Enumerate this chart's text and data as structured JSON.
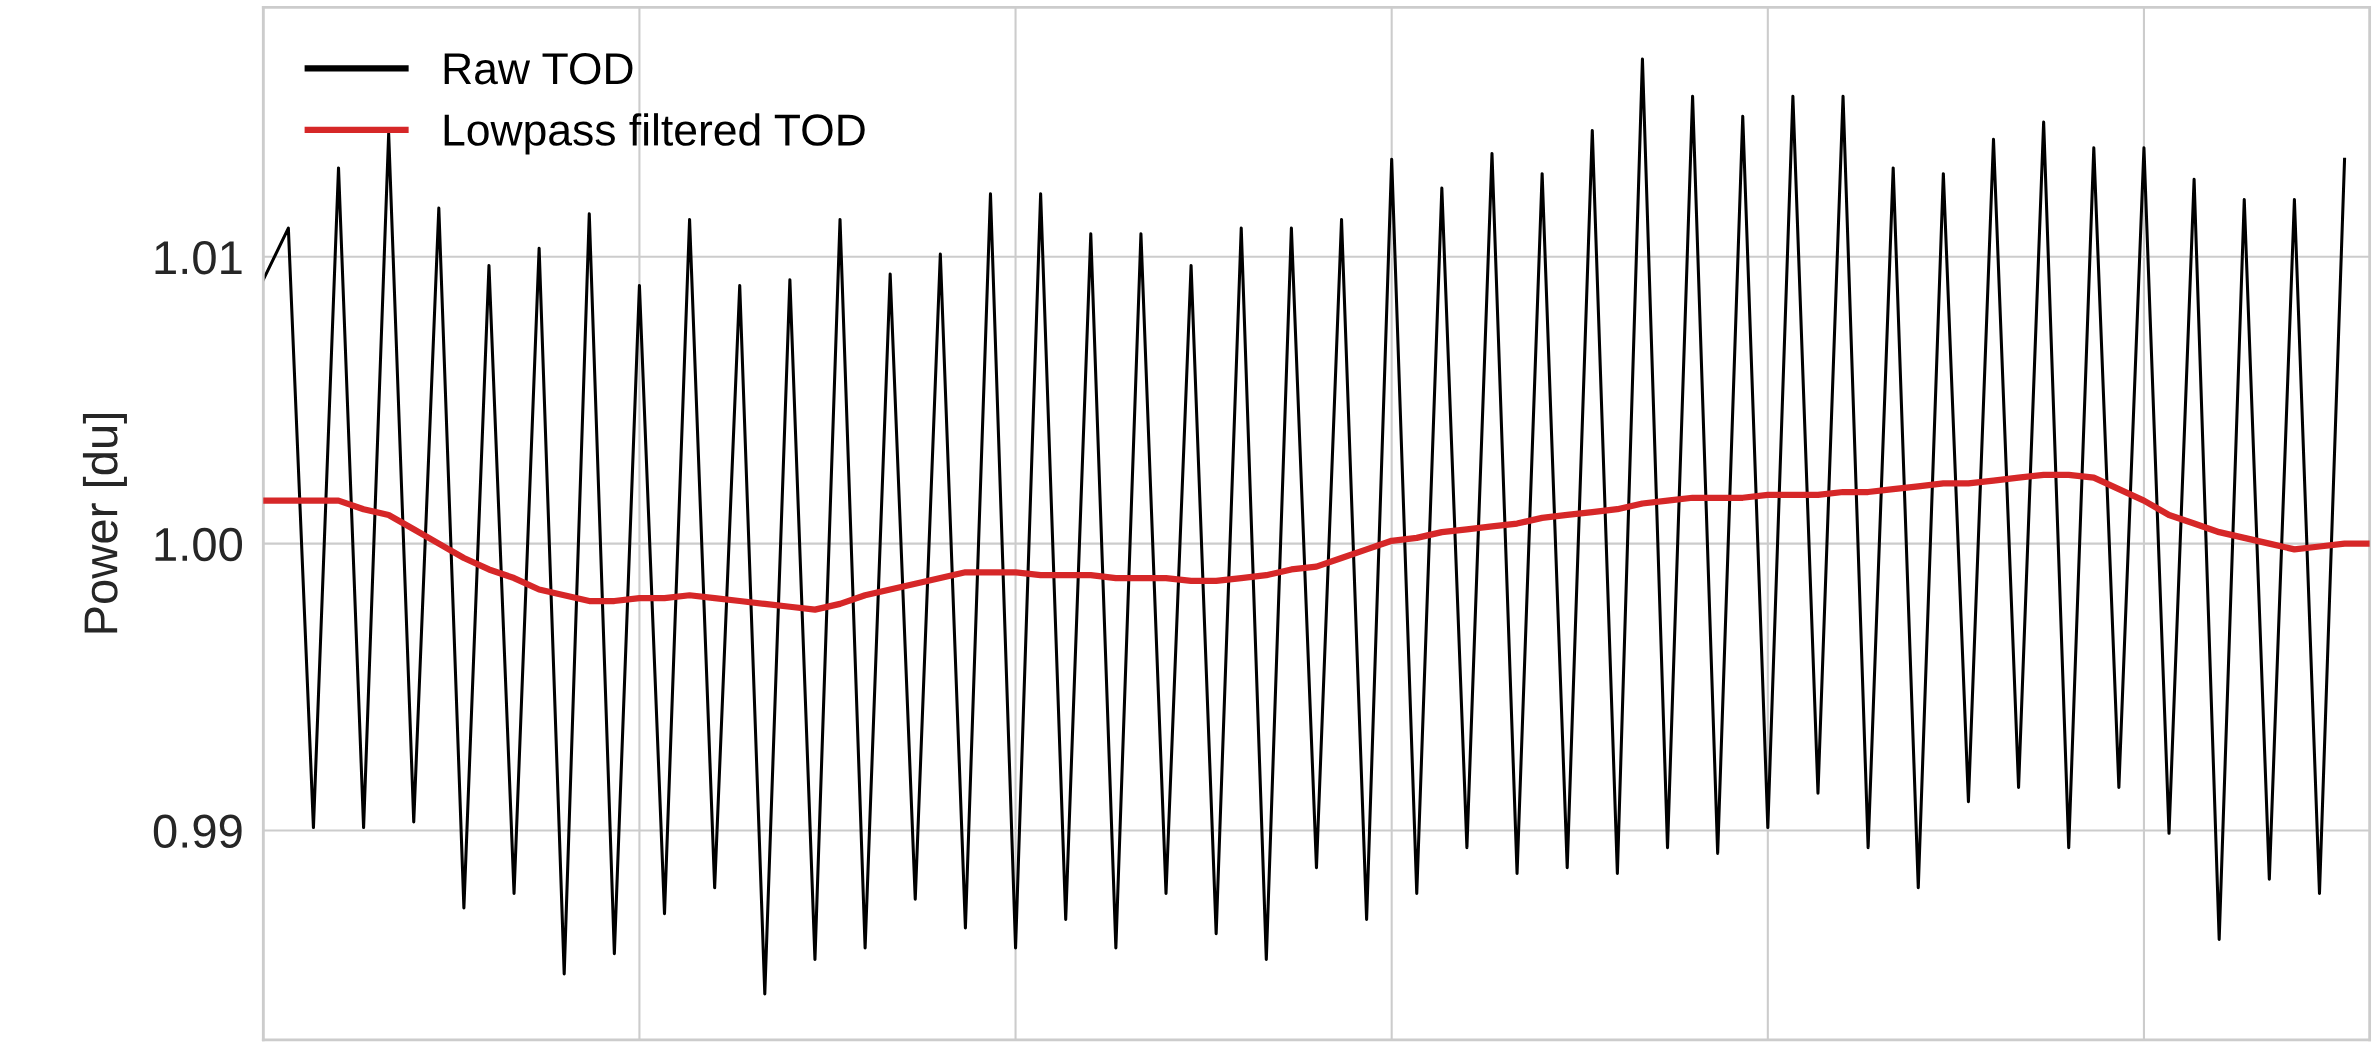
{
  "chart_data": {
    "type": "line",
    "ylabel": "Power [du]",
    "categories": [
      null,
      null,
      null,
      null,
      null,
      null,
      null,
      null,
      null,
      null,
      null,
      null,
      null,
      null,
      null,
      null,
      null,
      null,
      null,
      null,
      null,
      null,
      null,
      null,
      null,
      null,
      null,
      null,
      null,
      null,
      null,
      null,
      null,
      null,
      null,
      null,
      null,
      null,
      null,
      null,
      null,
      null,
      null,
      null,
      null,
      null,
      null,
      null,
      null,
      null,
      null,
      null,
      null,
      null,
      null,
      null,
      null,
      null,
      null,
      null,
      null,
      null,
      null,
      null,
      null,
      null,
      null,
      null,
      null,
      null,
      null,
      null,
      null,
      null,
      null,
      null,
      null,
      null,
      null,
      null,
      null,
      null,
      null,
      null,
      null
    ],
    "ylim": [
      0.9827,
      1.0187
    ],
    "yticks": [
      0.99,
      {
        "value": 1.0,
        "label": "1.00"
      },
      1.01
    ],
    "grid": true,
    "legend": "top left",
    "line_style": "solid",
    "marker": "none",
    "series": [
      {
        "name": "Raw TOD",
        "color": "#000000",
        "values": [
          1.0092,
          1.011,
          0.9901,
          1.0131,
          0.9901,
          1.0143,
          0.9903,
          1.0117,
          0.9873,
          1.0097,
          0.9878,
          1.0103,
          0.985,
          1.0115,
          0.9857,
          1.009,
          0.9871,
          1.0113,
          0.988,
          1.009,
          0.9843,
          1.0092,
          0.9855,
          1.0113,
          0.9859,
          1.0094,
          0.9876,
          1.0101,
          0.9866,
          1.0122,
          0.9859,
          1.0122,
          0.9869,
          1.0108,
          0.9859,
          1.0108,
          0.9878,
          1.0097,
          0.9864,
          1.011,
          0.9855,
          1.011,
          0.9887,
          1.0113,
          0.9869,
          1.0134,
          0.9878,
          1.0124,
          0.9894,
          1.0136,
          0.9885,
          1.0129,
          0.9887,
          1.0144,
          0.9885,
          1.0169,
          0.9894,
          1.0156,
          0.9892,
          1.0149,
          0.9901,
          1.0156,
          0.9913,
          1.0156,
          0.9894,
          1.0131,
          0.988,
          1.0129,
          0.991,
          1.0141,
          0.9915,
          1.0147,
          0.9894,
          1.0138,
          0.9915,
          1.0138,
          0.9899,
          1.0127,
          0.9862,
          1.012,
          0.9883,
          1.012,
          0.9878,
          1.0134,
          null
        ]
      },
      {
        "name": "Lowpass filtered TOD",
        "color": "#d62728",
        "values": [
          1.0015,
          1.0015,
          1.0015,
          1.0015,
          1.0012,
          1.001,
          1.0005,
          1.0,
          0.9995,
          0.9991,
          0.9988,
          0.9984,
          0.9982,
          0.998,
          0.998,
          0.9981,
          0.9981,
          0.9982,
          0.9981,
          0.998,
          0.9979,
          0.9978,
          0.9977,
          0.9979,
          0.9982,
          0.9984,
          0.9986,
          0.9988,
          0.999,
          0.999,
          0.999,
          0.9989,
          0.9989,
          0.9989,
          0.9988,
          0.9988,
          0.9988,
          0.9987,
          0.9987,
          0.9988,
          0.9989,
          0.9991,
          0.9992,
          0.9995,
          0.9998,
          1.0001,
          1.0002,
          1.0004,
          1.0005,
          1.0006,
          1.0007,
          1.0009,
          1.001,
          1.0011,
          1.0012,
          1.0014,
          1.0015,
          1.0016,
          1.0016,
          1.0016,
          1.0017,
          1.0017,
          1.0017,
          1.0018,
          1.0018,
          1.0019,
          1.002,
          1.0021,
          1.0021,
          1.0022,
          1.0023,
          1.0024,
          1.0024,
          1.0023,
          1.0019,
          1.0015,
          1.001,
          1.0007,
          1.0004,
          1.0002,
          1.0,
          0.9998,
          0.9999,
          1.0,
          1.0
        ]
      }
    ]
  }
}
